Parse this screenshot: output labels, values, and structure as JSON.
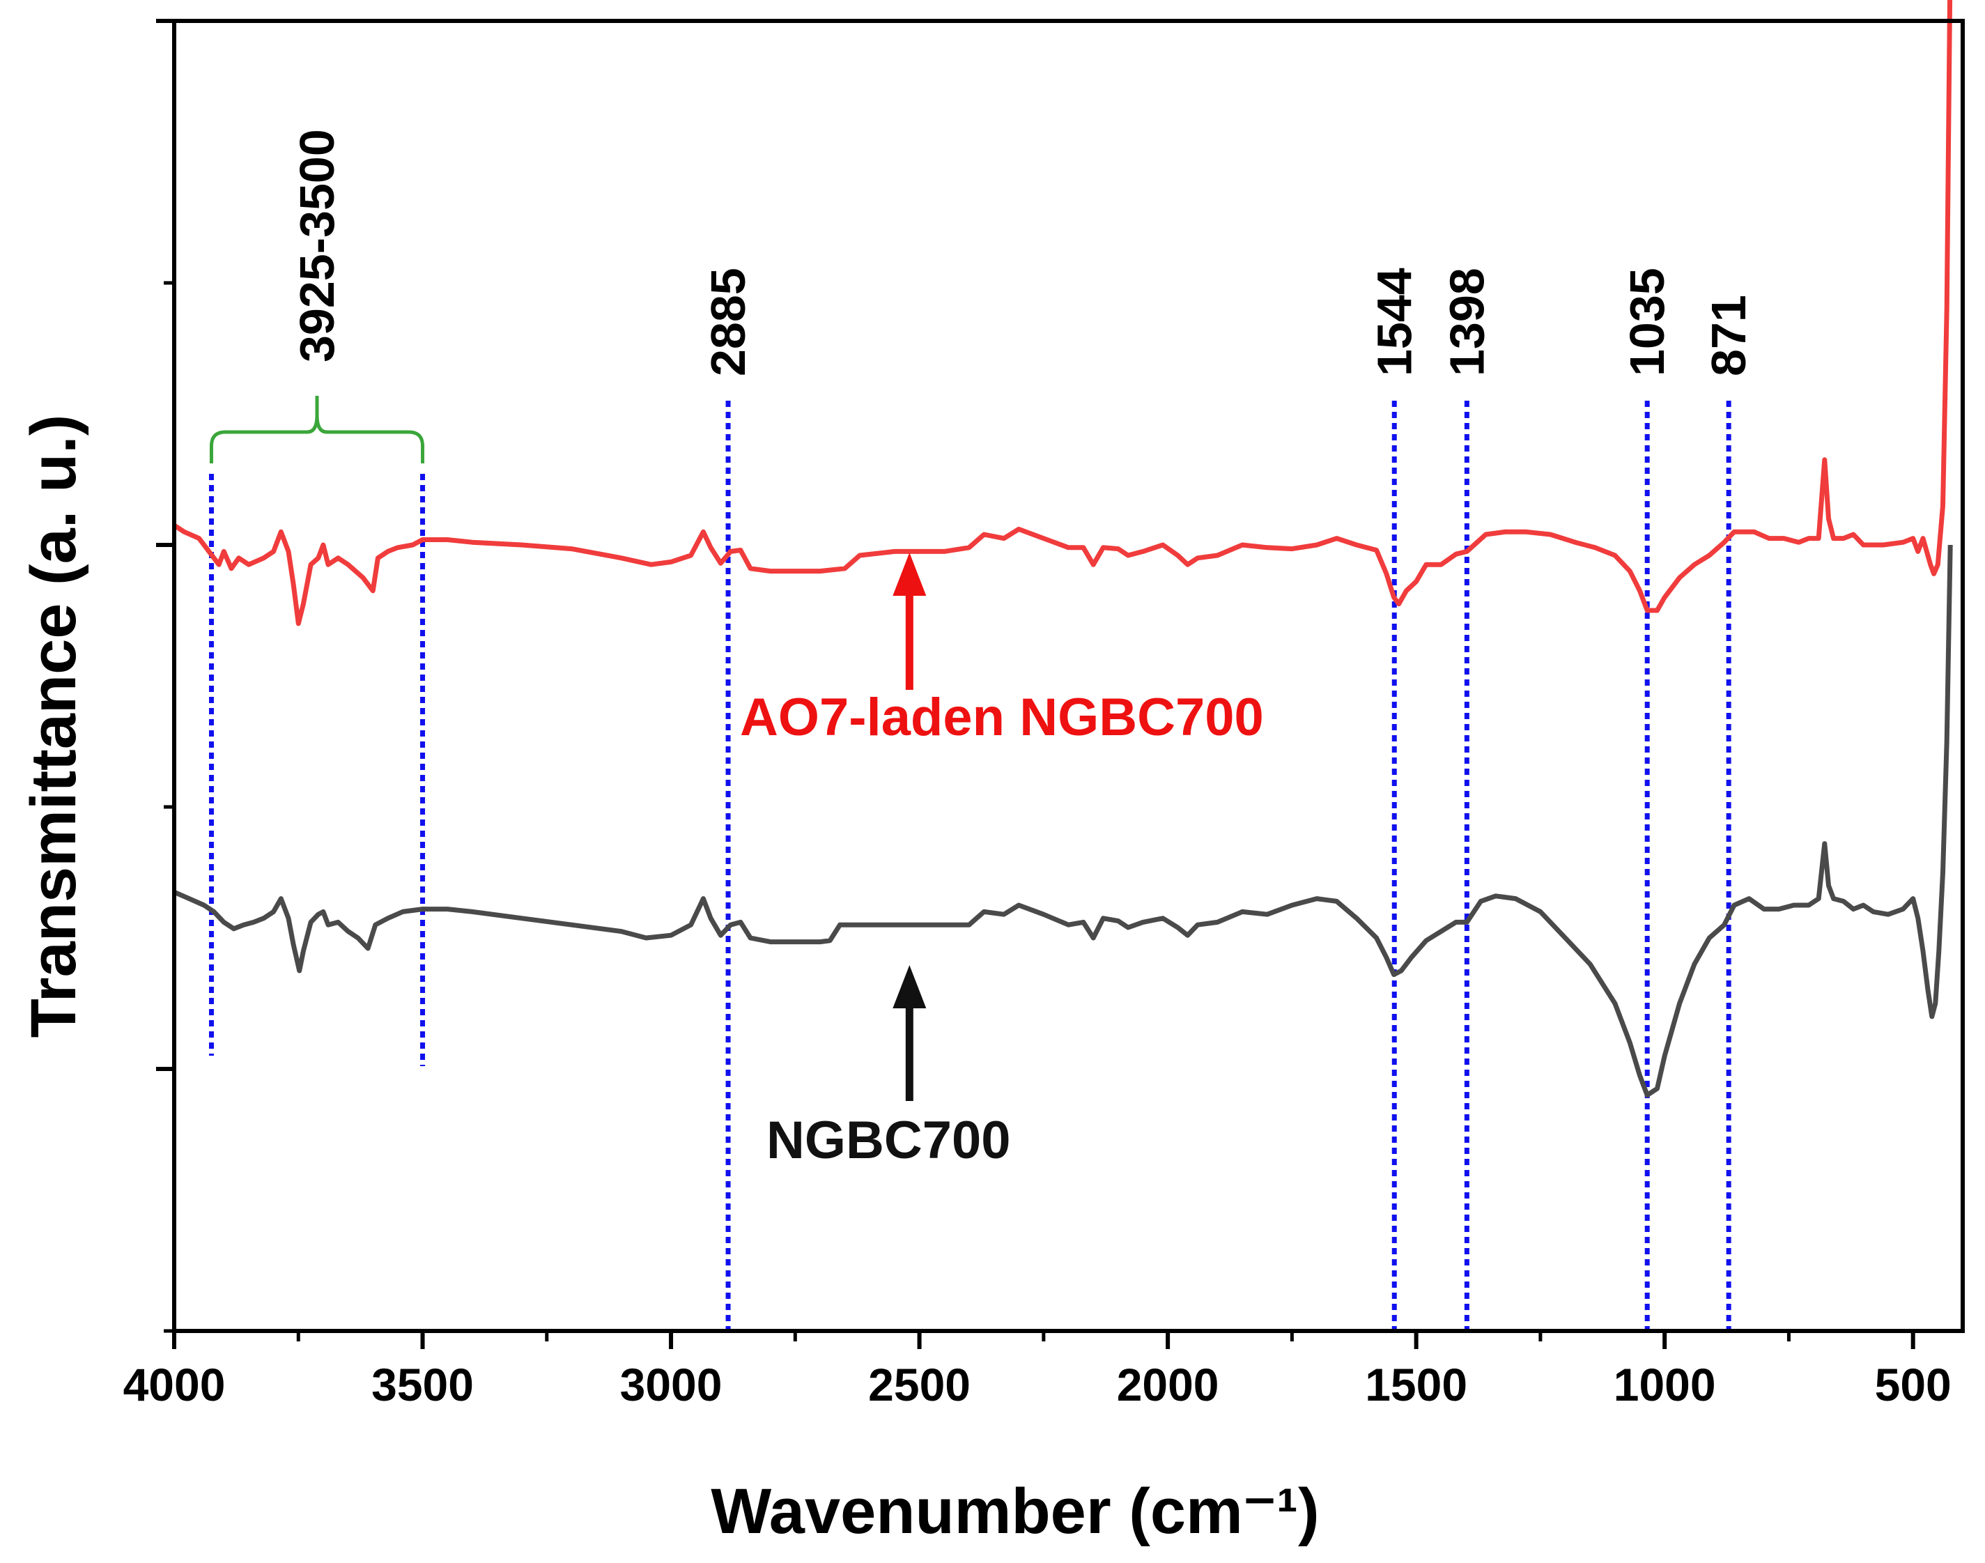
{
  "chart_data": {
    "type": "line",
    "title": "",
    "xlabel": "Wavenumber (cm⁻¹)",
    "ylabel": "Transmittance (a. u.)",
    "xlim": [
      4000,
      400
    ],
    "ylim": [
      0,
      10
    ],
    "x_ticks": [
      4000,
      3500,
      3000,
      2500,
      2000,
      1500,
      1000,
      500
    ],
    "x_tick_labels": [
      "4000",
      "3500",
      "3000",
      "2500",
      "2000",
      "1500",
      "1000",
      "500"
    ],
    "x_minor_ticks": [
      3750,
      3250,
      2750,
      2250,
      1750,
      1250,
      750
    ],
    "y_major_ticks": [
      2,
      6,
      10
    ],
    "y_minor_ticks": [
      0,
      4,
      8
    ],
    "colors": {
      "red_series": "#f03c3c",
      "black_series": "#4a4a4a",
      "peak_lines": "#1010ee",
      "bracket": "#3aa63a",
      "red_arrow": "#ee1111",
      "black_arrow": "#111111"
    },
    "series": [
      {
        "name": "AO7-laden NGBC700",
        "color": "#f03c3c",
        "points": [
          [
            4000,
            6.15
          ],
          [
            3980,
            6.1
          ],
          [
            3950,
            6.05
          ],
          [
            3930,
            5.95
          ],
          [
            3910,
            5.85
          ],
          [
            3900,
            5.95
          ],
          [
            3885,
            5.82
          ],
          [
            3870,
            5.9
          ],
          [
            3850,
            5.85
          ],
          [
            3820,
            5.9
          ],
          [
            3800,
            5.95
          ],
          [
            3785,
            6.1
          ],
          [
            3770,
            5.95
          ],
          [
            3760,
            5.7
          ],
          [
            3750,
            5.4
          ],
          [
            3740,
            5.55
          ],
          [
            3725,
            5.85
          ],
          [
            3710,
            5.9
          ],
          [
            3700,
            6.0
          ],
          [
            3690,
            5.85
          ],
          [
            3670,
            5.9
          ],
          [
            3650,
            5.85
          ],
          [
            3635,
            5.8
          ],
          [
            3620,
            5.75
          ],
          [
            3600,
            5.65
          ],
          [
            3590,
            5.9
          ],
          [
            3570,
            5.95
          ],
          [
            3550,
            5.98
          ],
          [
            3520,
            6.0
          ],
          [
            3500,
            6.04
          ],
          [
            3450,
            6.04
          ],
          [
            3400,
            6.02
          ],
          [
            3300,
            6.0
          ],
          [
            3200,
            5.97
          ],
          [
            3100,
            5.9
          ],
          [
            3040,
            5.85
          ],
          [
            3000,
            5.87
          ],
          [
            2960,
            5.92
          ],
          [
            2935,
            6.1
          ],
          [
            2920,
            5.98
          ],
          [
            2900,
            5.86
          ],
          [
            2880,
            5.95
          ],
          [
            2860,
            5.96
          ],
          [
            2840,
            5.82
          ],
          [
            2800,
            5.8
          ],
          [
            2750,
            5.8
          ],
          [
            2700,
            5.8
          ],
          [
            2650,
            5.82
          ],
          [
            2620,
            5.92
          ],
          [
            2550,
            5.95
          ],
          [
            2520,
            5.95
          ],
          [
            2450,
            5.95
          ],
          [
            2400,
            5.98
          ],
          [
            2370,
            6.08
          ],
          [
            2330,
            6.05
          ],
          [
            2300,
            6.12
          ],
          [
            2250,
            6.05
          ],
          [
            2200,
            5.98
          ],
          [
            2170,
            5.98
          ],
          [
            2150,
            5.85
          ],
          [
            2130,
            5.98
          ],
          [
            2100,
            5.97
          ],
          [
            2080,
            5.92
          ],
          [
            2050,
            5.95
          ],
          [
            2010,
            6.0
          ],
          [
            1980,
            5.92
          ],
          [
            1960,
            5.85
          ],
          [
            1940,
            5.9
          ],
          [
            1900,
            5.92
          ],
          [
            1850,
            6.0
          ],
          [
            1800,
            5.98
          ],
          [
            1750,
            5.97
          ],
          [
            1700,
            6.0
          ],
          [
            1660,
            6.05
          ],
          [
            1620,
            6.0
          ],
          [
            1580,
            5.96
          ],
          [
            1560,
            5.78
          ],
          [
            1545,
            5.6
          ],
          [
            1535,
            5.55
          ],
          [
            1520,
            5.65
          ],
          [
            1500,
            5.72
          ],
          [
            1480,
            5.85
          ],
          [
            1450,
            5.85
          ],
          [
            1420,
            5.93
          ],
          [
            1398,
            5.95
          ],
          [
            1360,
            6.08
          ],
          [
            1320,
            6.1
          ],
          [
            1280,
            6.1
          ],
          [
            1230,
            6.08
          ],
          [
            1180,
            6.02
          ],
          [
            1140,
            5.98
          ],
          [
            1100,
            5.92
          ],
          [
            1070,
            5.8
          ],
          [
            1050,
            5.65
          ],
          [
            1035,
            5.5
          ],
          [
            1015,
            5.5
          ],
          [
            1000,
            5.6
          ],
          [
            970,
            5.75
          ],
          [
            940,
            5.85
          ],
          [
            910,
            5.92
          ],
          [
            880,
            6.02
          ],
          [
            860,
            6.1
          ],
          [
            820,
            6.1
          ],
          [
            790,
            6.05
          ],
          [
            760,
            6.05
          ],
          [
            730,
            6.02
          ],
          [
            710,
            6.05
          ],
          [
            690,
            6.05
          ],
          [
            678,
            6.65
          ],
          [
            670,
            6.2
          ],
          [
            660,
            6.05
          ],
          [
            640,
            6.05
          ],
          [
            620,
            6.08
          ],
          [
            600,
            6.0
          ],
          [
            560,
            6.0
          ],
          [
            520,
            6.02
          ],
          [
            500,
            6.05
          ],
          [
            490,
            5.95
          ],
          [
            480,
            6.05
          ],
          [
            465,
            5.85
          ],
          [
            458,
            5.78
          ],
          [
            450,
            5.85
          ],
          [
            440,
            6.3
          ],
          [
            432,
            7.8
          ],
          [
            425,
            10.5
          ]
        ]
      },
      {
        "name": "NGBC700",
        "color": "#4a4a4a",
        "points": [
          [
            4000,
            3.35
          ],
          [
            3970,
            3.3
          ],
          [
            3940,
            3.25
          ],
          [
            3920,
            3.2
          ],
          [
            3900,
            3.12
          ],
          [
            3880,
            3.07
          ],
          [
            3860,
            3.1
          ],
          [
            3840,
            3.12
          ],
          [
            3820,
            3.15
          ],
          [
            3800,
            3.2
          ],
          [
            3785,
            3.3
          ],
          [
            3770,
            3.15
          ],
          [
            3760,
            2.95
          ],
          [
            3748,
            2.75
          ],
          [
            3740,
            2.9
          ],
          [
            3725,
            3.12
          ],
          [
            3710,
            3.18
          ],
          [
            3700,
            3.2
          ],
          [
            3690,
            3.1
          ],
          [
            3670,
            3.12
          ],
          [
            3650,
            3.05
          ],
          [
            3630,
            3.0
          ],
          [
            3610,
            2.92
          ],
          [
            3595,
            3.1
          ],
          [
            3570,
            3.15
          ],
          [
            3540,
            3.2
          ],
          [
            3500,
            3.22
          ],
          [
            3450,
            3.22
          ],
          [
            3400,
            3.2
          ],
          [
            3300,
            3.15
          ],
          [
            3200,
            3.1
          ],
          [
            3100,
            3.05
          ],
          [
            3050,
            3.0
          ],
          [
            3000,
            3.02
          ],
          [
            2960,
            3.1
          ],
          [
            2935,
            3.3
          ],
          [
            2920,
            3.15
          ],
          [
            2900,
            3.02
          ],
          [
            2880,
            3.1
          ],
          [
            2860,
            3.12
          ],
          [
            2840,
            3.0
          ],
          [
            2800,
            2.97
          ],
          [
            2750,
            2.97
          ],
          [
            2700,
            2.97
          ],
          [
            2680,
            2.98
          ],
          [
            2660,
            3.1
          ],
          [
            2600,
            3.1
          ],
          [
            2550,
            3.1
          ],
          [
            2500,
            3.1
          ],
          [
            2450,
            3.1
          ],
          [
            2400,
            3.1
          ],
          [
            2370,
            3.2
          ],
          [
            2330,
            3.18
          ],
          [
            2300,
            3.25
          ],
          [
            2250,
            3.18
          ],
          [
            2200,
            3.1
          ],
          [
            2170,
            3.12
          ],
          [
            2150,
            3.0
          ],
          [
            2130,
            3.15
          ],
          [
            2100,
            3.13
          ],
          [
            2080,
            3.08
          ],
          [
            2050,
            3.12
          ],
          [
            2010,
            3.15
          ],
          [
            1980,
            3.08
          ],
          [
            1960,
            3.02
          ],
          [
            1940,
            3.1
          ],
          [
            1900,
            3.12
          ],
          [
            1850,
            3.2
          ],
          [
            1800,
            3.18
          ],
          [
            1750,
            3.25
          ],
          [
            1700,
            3.3
          ],
          [
            1660,
            3.28
          ],
          [
            1620,
            3.15
          ],
          [
            1580,
            3.0
          ],
          [
            1560,
            2.85
          ],
          [
            1545,
            2.72
          ],
          [
            1530,
            2.75
          ],
          [
            1510,
            2.85
          ],
          [
            1480,
            2.98
          ],
          [
            1450,
            3.05
          ],
          [
            1420,
            3.12
          ],
          [
            1398,
            3.12
          ],
          [
            1370,
            3.28
          ],
          [
            1340,
            3.32
          ],
          [
            1300,
            3.3
          ],
          [
            1250,
            3.2
          ],
          [
            1200,
            3.0
          ],
          [
            1150,
            2.8
          ],
          [
            1100,
            2.5
          ],
          [
            1070,
            2.2
          ],
          [
            1050,
            1.95
          ],
          [
            1035,
            1.8
          ],
          [
            1015,
            1.85
          ],
          [
            1000,
            2.1
          ],
          [
            970,
            2.5
          ],
          [
            940,
            2.8
          ],
          [
            910,
            3.0
          ],
          [
            880,
            3.1
          ],
          [
            860,
            3.25
          ],
          [
            830,
            3.3
          ],
          [
            800,
            3.22
          ],
          [
            770,
            3.22
          ],
          [
            740,
            3.25
          ],
          [
            710,
            3.25
          ],
          [
            690,
            3.3
          ],
          [
            678,
            3.72
          ],
          [
            670,
            3.4
          ],
          [
            660,
            3.3
          ],
          [
            640,
            3.28
          ],
          [
            620,
            3.22
          ],
          [
            600,
            3.25
          ],
          [
            580,
            3.2
          ],
          [
            550,
            3.18
          ],
          [
            520,
            3.22
          ],
          [
            500,
            3.3
          ],
          [
            490,
            3.15
          ],
          [
            480,
            2.9
          ],
          [
            470,
            2.6
          ],
          [
            462,
            2.4
          ],
          [
            455,
            2.5
          ],
          [
            448,
            2.9
          ],
          [
            440,
            3.5
          ],
          [
            432,
            4.5
          ],
          [
            425,
            6.0
          ]
        ]
      }
    ],
    "peak_markers": [
      {
        "label": "3925-3500",
        "positions": [
          3925,
          3500
        ],
        "bracket": true
      },
      {
        "label": "2885",
        "positions": [
          2885
        ]
      },
      {
        "label": "1544",
        "positions": [
          1544
        ]
      },
      {
        "label": "1398",
        "positions": [
          1398
        ]
      },
      {
        "label": "1035",
        "positions": [
          1035
        ]
      },
      {
        "label": "871",
        "positions": [
          871
        ]
      }
    ],
    "annotations": [
      {
        "text": "AO7-laden NGBC700",
        "series": "AO7-laden NGBC700",
        "arrow_at_x": 2520,
        "color": "#ee1111"
      },
      {
        "text": "NGBC700",
        "series": "NGBC700",
        "arrow_at_x": 2520,
        "color": "#111111"
      }
    ]
  }
}
